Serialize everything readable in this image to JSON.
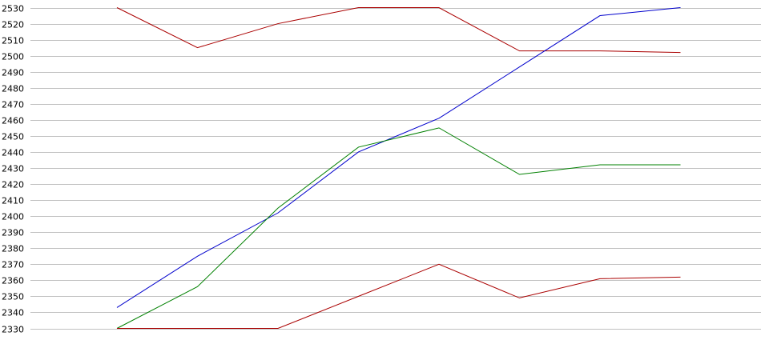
{
  "chart_data": {
    "type": "line",
    "title": "",
    "xlabel": "",
    "ylabel": "",
    "x": [
      1,
      2,
      3,
      4,
      5,
      6,
      7,
      8
    ],
    "ylim": [
      2330,
      2530
    ],
    "y_ticks": [
      2330,
      2340,
      2350,
      2360,
      2370,
      2380,
      2390,
      2400,
      2410,
      2420,
      2430,
      2440,
      2450,
      2460,
      2470,
      2480,
      2490,
      2500,
      2510,
      2520,
      2530
    ],
    "grid": true,
    "legend": "none",
    "series": [
      {
        "color": "#aa0000",
        "values": [
          2530,
          2505,
          2520,
          2530,
          2530,
          2503,
          2503,
          2502
        ]
      },
      {
        "color": "#0000cc",
        "values": [
          2343,
          2375,
          2402,
          2440,
          2461,
          2493,
          2525,
          2530
        ]
      },
      {
        "color": "#008000",
        "values": [
          2330,
          2356,
          2405,
          2443,
          2455,
          2426,
          2432,
          2432
        ]
      },
      {
        "color": "#aa0000",
        "values": [
          2330,
          2330,
          2330,
          2350,
          2370,
          2349,
          2361,
          2362
        ]
      }
    ]
  }
}
